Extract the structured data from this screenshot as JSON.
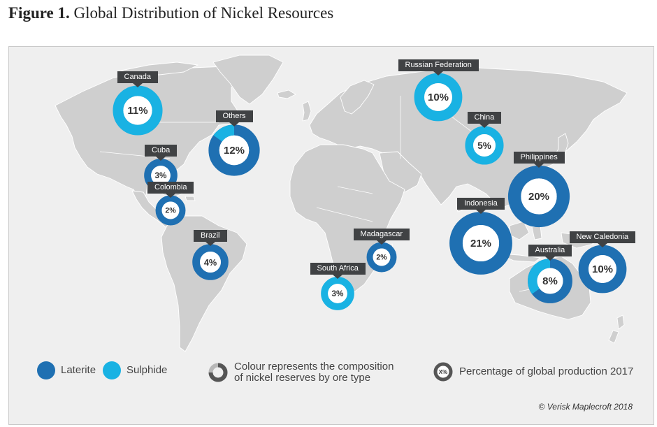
{
  "figure": {
    "label": "Figure 1.",
    "title": "Global Distribution of Nickel Resources"
  },
  "colors": {
    "laterite": "#1f70b2",
    "sulphide": "#19b2e3",
    "land": "#cfcfcf",
    "ocean": "#efefef",
    "label_bg": "#404244"
  },
  "legend": {
    "laterite_label": "Laterite",
    "sulphide_label": "Sulphide",
    "composition_text_1": "Colour represents the composition",
    "composition_text_2": "of nickel reserves by ore type",
    "percent_icon_text": "X%",
    "percent_text": "Percentage of global production 2017"
  },
  "credit": "© Verisk Maplecroft 2018",
  "chart_data": {
    "type": "map-donuts",
    "value_meaning": "Percentage of global production 2017",
    "ring_meaning": "Composition of nickel reserves by ore type",
    "markers": [
      {
        "name": "Canada",
        "label": "11%",
        "value": 11,
        "laterite": 0,
        "sulphide": 100
      },
      {
        "name": "Others",
        "label": "12%",
        "value": 12,
        "laterite": 85,
        "sulphide": 15
      },
      {
        "name": "Cuba",
        "label": "3%",
        "value": 3,
        "laterite": 100,
        "sulphide": 0
      },
      {
        "name": "Colombia",
        "label": "2%",
        "value": 2,
        "laterite": 100,
        "sulphide": 0
      },
      {
        "name": "Brazil",
        "label": "4%",
        "value": 4,
        "laterite": 100,
        "sulphide": 0
      },
      {
        "name": "South Africa",
        "label": "3%",
        "value": 3,
        "laterite": 0,
        "sulphide": 100
      },
      {
        "name": "Madagascar",
        "label": "2%",
        "value": 2,
        "laterite": 100,
        "sulphide": 0
      },
      {
        "name": "Russian Federation",
        "label": "10%",
        "value": 10,
        "laterite": 0,
        "sulphide": 100
      },
      {
        "name": "China",
        "label": "5%",
        "value": 5,
        "laterite": 0,
        "sulphide": 100
      },
      {
        "name": "Philippines",
        "label": "20%",
        "value": 20,
        "laterite": 100,
        "sulphide": 0
      },
      {
        "name": "Indonesia",
        "label": "21%",
        "value": 21,
        "laterite": 100,
        "sulphide": 0
      },
      {
        "name": "Australia",
        "label": "8%",
        "value": 8,
        "laterite": 65,
        "sulphide": 35
      },
      {
        "name": "New Caledonia",
        "label": "10%",
        "value": 10,
        "laterite": 100,
        "sulphide": 0
      }
    ]
  }
}
